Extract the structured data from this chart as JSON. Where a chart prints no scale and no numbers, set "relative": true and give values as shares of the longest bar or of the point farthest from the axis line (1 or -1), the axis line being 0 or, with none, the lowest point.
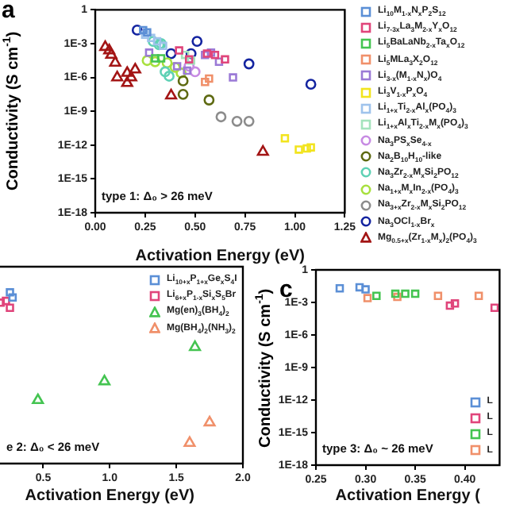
{
  "chart_data": [
    {
      "type": "scatter",
      "title": "a",
      "xlabel": "Activation Energy (eV)",
      "ylabel": "Conductivity (S cm$^{-1}$)",
      "annotations": [
        "type 1: Δ₀ > 26 meV"
      ],
      "xlim": [
        0,
        1.25
      ],
      "xticks": [
        {
          "value": 0,
          "label": "0.00"
        },
        0.25,
        {
          "value": 0.5,
          "label": "0.50"
        },
        0.75,
        {
          "value": 1,
          "label": "1.00"
        },
        1.25
      ],
      "ylim": [
        1e-18,
        1
      ],
      "yticks": [
        {
          "value": 1e-18,
          "label": "1E-18"
        },
        {
          "value": 1e-15,
          "label": "1E-15"
        },
        {
          "value": 1e-12,
          "label": "1E-12"
        },
        {
          "value": 1e-09,
          "label": "1E-9"
        },
        {
          "value": 1e-06,
          "label": "1E-6"
        },
        {
          "value": 0.001,
          "label": "1E-3"
        },
        1
      ],
      "log": "y",
      "grid": false,
      "legend": "right",
      "series": [
        {
          "name": "Li$_{10}$M$_{1-x}$N$_{x}$P$_{2}$S$_{12}$",
          "color": "#5b8fd6",
          "marker": "square",
          "x": [
            0.24,
            0.26
          ],
          "values": [
            0.016,
            0.01
          ]
        },
        {
          "name": "Li$_{7-3x}$La$_{3}$M$_{2-x}$Y$_{x}$O$_{12}$",
          "color": "#e0457b",
          "marker": "square",
          "x": [
            0.42,
            0.47,
            0.56,
            0.6,
            0.65
          ],
          "values": [
            0.00025,
            4e-05,
            0.00013,
            0.0001,
            4e-05
          ]
        },
        {
          "name": "Li$_{5}$BaLaNb$_{2-x}$Ta$_{x}$O$_{12}$",
          "color": "#44c451",
          "marker": "square",
          "x": [
            0.3,
            0.33
          ],
          "values": [
            5e-05,
            5e-05
          ]
        },
        {
          "name": "Li$_{5}$MLa$_{3}$X$_{2}$O$_{12}$",
          "color": "#f0906a",
          "marker": "square",
          "x": [
            0.55,
            0.57
          ],
          "values": [
            4e-07,
            8e-07
          ]
        },
        {
          "name": "Li$_{3-x}$(M$_{1-x}$N$_{x}$)O$_{4}$",
          "color": "#9b7ad6",
          "marker": "square",
          "x": [
            0.27,
            0.41,
            0.46,
            0.55,
            0.58,
            0.62,
            0.69
          ],
          "values": [
            0.00016,
            1e-05,
            4e-06,
            0.0001,
            0.00016,
            2.5e-05,
            1e-06
          ]
        },
        {
          "name": "Li$_{3}$V$_{1-x}$P$_{x}$O$_{4}$",
          "color": "#f2e41e",
          "marker": "square",
          "x": [
            0.95,
            1.02,
            1.06,
            1.08
          ],
          "values": [
            4e-12,
            4e-13,
            5e-13,
            6.3e-13
          ]
        },
        {
          "name": "Li$_{1+x}$Ti$_{2-x}$Al$_{x}$(PO$_{4}$)$_{3}$",
          "color": "#9fc3ec",
          "marker": "square",
          "x": [
            0.25,
            0.28,
            0.31,
            0.34
          ],
          "values": [
            0.0063,
            0.0032,
            0.0016,
            0.00063
          ]
        },
        {
          "name": "Li$_{1+x}$Al$_{x}$Ti$_{2-x}$M$_{x}$(PO$_{4}$)$_{3}$",
          "color": "#a5e3bd",
          "marker": "square",
          "x": [
            0.45,
            0.48
          ],
          "values": [
            0.0001,
            3.2e-05
          ]
        },
        {
          "name": "Na$_{3}$PS$_{x}$Se$_{4-x}$",
          "color": "#c78be3",
          "marker": "circle",
          "x": [
            0.47,
            0.5
          ],
          "values": [
            1e-05,
            3.2e-06
          ]
        },
        {
          "name": "Na$_{2}$B$_{10}$H$_{10}$-like",
          "color": "#5e6a12",
          "marker": "circle",
          "x": [
            0.44,
            0.44,
            0.57
          ],
          "values": [
            5e-07,
            3.2e-08,
            1e-08
          ]
        },
        {
          "name": "Na$_{3}$Zr$_{2-x}$M$_{x}$Si$_{2}$PO$_{12}$",
          "color": "#5fd1b5",
          "marker": "circle",
          "x": [
            0.29,
            0.32,
            0.33,
            0.35,
            0.37
          ],
          "values": [
            0.0016,
            0.0008,
            0.001,
            3.2e-06,
            1.3e-06
          ]
        },
        {
          "name": "Na$_{1+x}$M$_{x}$In$_{2-x}$(PO$_{4}$)$_{3}$",
          "color": "#a8e03f",
          "marker": "circle",
          "x": [
            0.26,
            0.3,
            0.36,
            0.4,
            0.43
          ],
          "values": [
            3.2e-05,
            2.5e-05,
            2e-05,
            8e-06,
            2.5e-06
          ]
        },
        {
          "name": "Na$_{3+x}$Zr$_{2-x}$M$_{x}$Si$_{2}$PO$_{12}$",
          "color": "#8c8c8c",
          "marker": "circle",
          "x": [
            0.63,
            0.71,
            0.77
          ],
          "values": [
            3.2e-10,
            1.3e-10,
            1.3e-10
          ]
        },
        {
          "name": "Na$_{3}$OCl$_{1-x}$Br$_{x}$",
          "color": "#1424a0",
          "marker": "circle",
          "x": [
            0.21,
            0.38,
            0.48,
            0.51,
            0.77,
            1.08
          ],
          "values": [
            0.016,
            0.00013,
            0.00013,
            0.0016,
            1.6e-05,
            2.5e-07
          ]
        },
        {
          "name": "Mg$_{0.5+x}$(Zr$_{1-x}$M$_{x}$)$_{2}$(PO$_{4}$)$_{3}$",
          "color": "#a31515",
          "marker": "triangle",
          "x": [
            0.05,
            0.07,
            0.08,
            0.1,
            0.11,
            0.16,
            0.16,
            0.18,
            0.2,
            0.38,
            0.84
          ],
          "values": [
            0.0005,
            0.00025,
            0.0001,
            2e-05,
            1e-06,
            2.5e-06,
            3.2e-07,
            1e-06,
            5e-06,
            2.5e-08,
            2.5e-13
          ]
        }
      ]
    },
    {
      "type": "scatter",
      "xlabel": "Activation Energy (eV)",
      "annotations": [
        "e 2: Δ₀ < 26 meV"
      ],
      "xlim": [
        0,
        2
      ],
      "xticks": [
        0.5,
        {
          "value": 1,
          "label": "1.0"
        },
        1.5,
        {
          "value": 2,
          "label": "2.0"
        }
      ],
      "relative": true,
      "tick_labels": "x",
      "grid": false,
      "legend": "top right",
      "series": [
        {
          "name": "Li$_{10+x}$P$_{1+x}$Ge$_{x}$S$_{4}$I",
          "color": "#5b8fd6",
          "marker": "square",
          "x": [
            0.25,
            0.27
          ],
          "values": [
            1,
            0.97
          ]
        },
        {
          "name": "Li$_{6+x}$P$_{1-x}$Si$_{x}$S$_{5}$Br",
          "color": "#e0457b",
          "marker": "square",
          "x": [
            0.18,
            0.22,
            0.25
          ],
          "values": [
            0.94,
            0.95,
            0.91
          ]
        },
        {
          "name": "Mg(en)$_{3}$(BH$_{4}$)$_{2}$",
          "color": "#44c451",
          "marker": "triangle",
          "x": [
            0.46,
            0.96,
            1.64
          ],
          "values": [
            0.37,
            0.48,
            0.68
          ]
        },
        {
          "name": "Mg(BH$_{4}$)$_{2}$(NH$_{3}$)$_{2}$",
          "color": "#f0906a",
          "marker": "triangle",
          "x": [
            1.6,
            1.75
          ],
          "values": [
            0.12,
            0.24
          ]
        }
      ]
    },
    {
      "type": "scatter",
      "title": "c",
      "xlabel": "Activation Energy (",
      "ylabel": "Conductivity (S cm$^{-1}$)",
      "annotations": [
        "type 3: Δ₀ ~ 26 meV"
      ],
      "xlim": [
        0.25,
        0.435
      ],
      "xticks": [
        0.25,
        {
          "value": 0.3,
          "label": "0.30"
        },
        0.35,
        {
          "value": 0.4,
          "label": "0.40"
        }
      ],
      "ylim": [
        1e-18,
        1
      ],
      "yticks": [
        {
          "value": 1e-18,
          "label": "1E-18"
        },
        {
          "value": 1e-15,
          "label": "1E-15"
        },
        {
          "value": 1e-12,
          "label": "1E-12"
        },
        {
          "value": 1e-09,
          "label": "1E-9"
        },
        {
          "value": 1e-06,
          "label": "1E-6"
        },
        {
          "value": 0.001,
          "label": "1E-3"
        },
        1
      ],
      "log": "y",
      "grid": false,
      "legend": "bottom right",
      "series": [
        {
          "name": "L",
          "color": "#5b8fd6",
          "marker": "square",
          "x": [
            0.274,
            0.294,
            0.3
          ],
          "values": [
            0.02,
            0.025,
            0.016
          ]
        },
        {
          "name": "L",
          "color": "#e0457b",
          "marker": "square",
          "x": [
            0.385,
            0.39,
            0.43
          ],
          "values": [
            0.0005,
            0.0008,
            0.00032
          ]
        },
        {
          "name": "L",
          "color": "#44c451",
          "marker": "square",
          "x": [
            0.311,
            0.33,
            0.34,
            0.35
          ],
          "values": [
            0.004,
            0.0063,
            0.0063,
            0.0063
          ]
        },
        {
          "name": "L",
          "color": "#f0906a",
          "marker": "square",
          "x": [
            0.302,
            0.332,
            0.373,
            0.414
          ],
          "values": [
            0.0025,
            0.0032,
            0.004,
            0.004
          ]
        }
      ]
    }
  ]
}
